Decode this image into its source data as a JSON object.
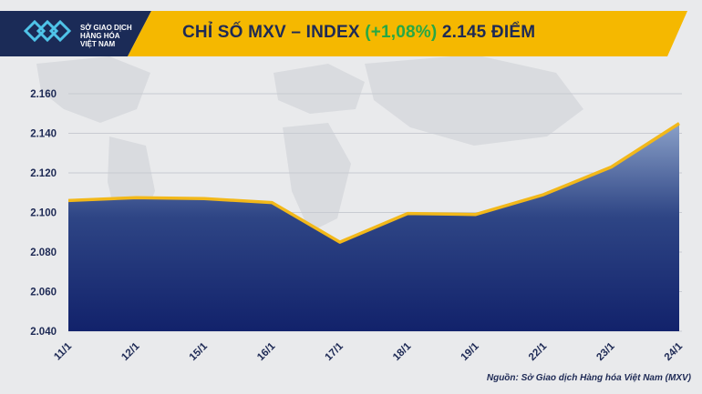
{
  "header": {
    "logo_lines": [
      "SỞ GIAO DỊCH",
      "HÀNG HÓA",
      "VIỆT NAM"
    ],
    "title_main": "CHỈ SỐ MXV – INDEX ",
    "title_change": "(+1,08%)",
    "title_value": " 2.145 ĐIỂM"
  },
  "source_note": "Nguồn: Sở Giao dịch Hàng hóa Việt Nam (MXV)",
  "colors": {
    "band": "#f5b800",
    "band_dark": "#1b2b57",
    "line": "#f2b81a",
    "area_top": "#8aa0c8",
    "area_bottom": "#12226b",
    "change_green": "#27a845",
    "title_text": "#1e2a55"
  },
  "chart_data": {
    "type": "area",
    "categories": [
      "11/1",
      "12/1",
      "15/1",
      "16/1",
      "17/1",
      "18/1",
      "19/1",
      "22/1",
      "23/1",
      "24/1"
    ],
    "values": [
      2106,
      2107.5,
      2107,
      2105,
      2085,
      2099.5,
      2099,
      2109,
      2123,
      2145
    ],
    "y_ticks": [
      "2.040",
      "2.060",
      "2.080",
      "2.100",
      "2.120",
      "2.140",
      "2.160"
    ],
    "ylim": [
      2040,
      2160
    ],
    "grid": true,
    "legend": "none"
  }
}
